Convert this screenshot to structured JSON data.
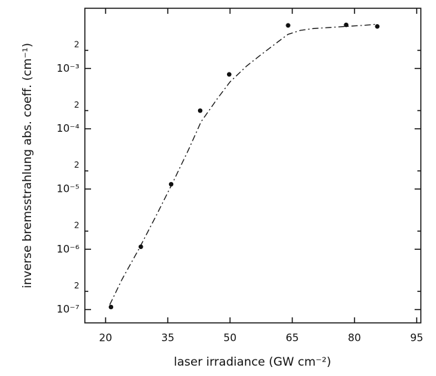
{
  "chart_data": {
    "type": "scatter",
    "xlabel": "laser irradiance (GW cm⁻²)",
    "ylabel": "inverse bremsstrahlung abs. coeff. (cm⁻¹)",
    "xlim": [
      15,
      96
    ],
    "xticks": [
      20,
      35,
      50,
      65,
      80,
      95
    ],
    "ylim": [
      6e-08,
      0.01
    ],
    "log_y": true,
    "yticks": [
      {
        "value": 1e-07,
        "label": "10⁻⁷"
      },
      {
        "value": 2e-07,
        "label": "2"
      },
      {
        "value": 1e-06,
        "label": "10⁻⁶"
      },
      {
        "value": 2e-06,
        "label": "2"
      },
      {
        "value": 1e-05,
        "label": "10⁻⁵"
      },
      {
        "value": 2e-05,
        "label": "2"
      },
      {
        "value": 0.0001,
        "label": "10⁻⁴"
      },
      {
        "value": 0.0002,
        "label": "2"
      },
      {
        "value": 0.001,
        "label": "10⁻³"
      },
      {
        "value": 0.002,
        "label": "2"
      }
    ],
    "series": [
      {
        "kind": "points",
        "color": "#111",
        "x": [
          21.3,
          28.5,
          35.8,
          42.8,
          49.8,
          64,
          78,
          85.5
        ],
        "values": [
          1.1e-07,
          1.1e-06,
          1.2e-05,
          0.0002,
          0.0008,
          0.0052,
          0.0053,
          0.005
        ]
      },
      {
        "kind": "line",
        "color": "#111",
        "dash": "9 4 2 4",
        "x": [
          21,
          24,
          28,
          32,
          36,
          40,
          43,
          47,
          50,
          54,
          57,
          61,
          64,
          67,
          70,
          74,
          78,
          82,
          85
        ],
        "values": [
          1.2e-07,
          3.2e-07,
          1e-06,
          3.4e-06,
          1.2e-05,
          4.5e-05,
          0.00013,
          0.00032,
          0.0006,
          0.0011,
          0.0016,
          0.0026,
          0.0037,
          0.0043,
          0.0046,
          0.0048,
          0.005,
          0.0052,
          0.0054
        ]
      }
    ]
  }
}
